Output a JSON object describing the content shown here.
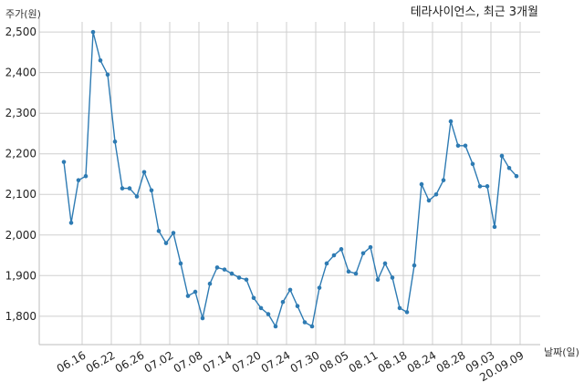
{
  "chart_data": {
    "type": "line",
    "title": "테라사이언스, 최근 3개월",
    "ylabel": "주가(원)",
    "xlabel": "날짜(일)",
    "ylim": [
      1730,
      2525
    ],
    "yticks": [
      1800,
      1900,
      2000,
      2100,
      2200,
      2300,
      2400,
      2500
    ],
    "ytick_labels": [
      "1,800",
      "1,900",
      "2,000",
      "2,100",
      "2,200",
      "2,300",
      "2,400",
      "2,500"
    ],
    "xtick_labels": [
      "06.16",
      "06.22",
      "06.26",
      "07.02",
      "07.08",
      "07.14",
      "07.20",
      "07.24",
      "07.30",
      "08.05",
      "08.11",
      "08.18",
      "08.24",
      "08.28",
      "09.03",
      "20.09.09"
    ],
    "xtick_positions": [
      2.5,
      6.5,
      10.5,
      14.5,
      18.5,
      22.5,
      26.5,
      30.5,
      34.5,
      38.5,
      42.5,
      46.5,
      50.5,
      54.5,
      58.5,
      62.5
    ],
    "grid": true,
    "color": "#2e7bb3",
    "series": [
      {
        "values": [
          2180,
          2030,
          2135,
          2145,
          2500,
          2430,
          2395,
          2230,
          2115,
          2115,
          2095,
          2155,
          2110,
          2010,
          1980,
          2005,
          1930,
          1850,
          1860,
          1795,
          1880,
          1920,
          1915,
          1905,
          1895,
          1890,
          1845,
          1820,
          1805,
          1775,
          1835,
          1865,
          1825,
          1785,
          1775,
          1870,
          1930,
          1950,
          1965,
          1910,
          1905,
          1955,
          1970,
          1890,
          1930,
          1895,
          1820,
          1810,
          1925,
          2125,
          2085,
          2100,
          2135,
          2280,
          2220,
          2220,
          2175,
          2120,
          2120,
          2020,
          2195,
          2165,
          2145
        ]
      }
    ]
  }
}
